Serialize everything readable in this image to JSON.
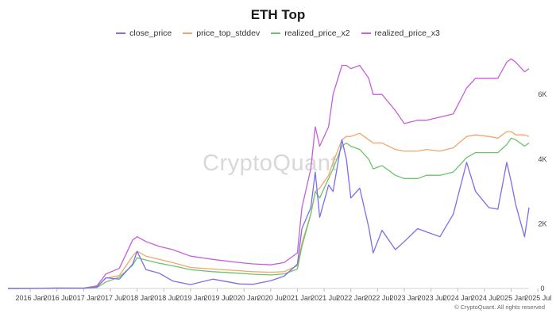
{
  "chart_data": {
    "type": "line",
    "title": "ETH Top",
    "xlabel": "",
    "ylabel": "",
    "ylim": [
      0,
      7500
    ],
    "y_ticks": [
      0,
      2000,
      4000,
      6000
    ],
    "y_tick_labels": [
      "0",
      "2K",
      "4K",
      "6K"
    ],
    "x_tick_labels": [
      "2016 Jan",
      "2016 Jul",
      "2017 Jan",
      "2017 Jul",
      "2018 Jan",
      "2018 Jul",
      "2019 Jan",
      "2019 Jul",
      "2020 Jan",
      "2020 Jul",
      "2021 Jan",
      "2021 Jul",
      "2022 Jan",
      "2022 Jul",
      "2023 Jan",
      "2023 Jul",
      "2024 Jan",
      "2024 Jul",
      "2025 Jan",
      "2025 Jul"
    ],
    "x_range": [
      "2015-08",
      "2025-05"
    ],
    "grid": false,
    "legend_position": "top-center",
    "x": [
      "2015-08",
      "2016-01",
      "2016-07",
      "2017-01",
      "2017-04",
      "2017-06",
      "2017-09",
      "2017-12",
      "2018-01",
      "2018-03",
      "2018-06",
      "2018-09",
      "2019-01",
      "2019-06",
      "2019-12",
      "2020-03",
      "2020-07",
      "2020-10",
      "2021-01",
      "2021-02",
      "2021-04",
      "2021-05",
      "2021-06",
      "2021-08",
      "2021-09",
      "2021-11",
      "2021-12",
      "2022-01",
      "2022-03",
      "2022-05",
      "2022-06",
      "2022-08",
      "2022-11",
      "2023-01",
      "2023-04",
      "2023-06",
      "2023-09",
      "2023-12",
      "2024-03",
      "2024-05",
      "2024-08",
      "2024-10",
      "2024-12",
      "2025-01",
      "2025-02",
      "2025-04",
      "2025-05"
    ],
    "series": [
      {
        "name": "close_price",
        "color": "#7b6ee8",
        "values": [
          1,
          1,
          11,
          9,
          50,
          330,
          290,
          750,
          1150,
          580,
          470,
          230,
          120,
          290,
          140,
          130,
          240,
          380,
          750,
          1850,
          2500,
          3600,
          2200,
          3200,
          3000,
          4600,
          4000,
          2800,
          3100,
          1900,
          1100,
          1800,
          1200,
          1450,
          1850,
          1750,
          1600,
          2300,
          3900,
          3000,
          2500,
          2450,
          3900,
          3300,
          2600,
          1600,
          2500
        ]
      },
      {
        "name": "price_top_stddev",
        "color": "#f1a56b",
        "values": [
          1,
          2,
          12,
          10,
          55,
          320,
          400,
          1000,
          1150,
          1000,
          900,
          800,
          650,
          600,
          550,
          520,
          500,
          520,
          700,
          1400,
          2300,
          3000,
          3100,
          3500,
          3900,
          4600,
          4700,
          4700,
          4800,
          4600,
          4500,
          4500,
          4300,
          4250,
          4250,
          4300,
          4250,
          4350,
          4700,
          4750,
          4700,
          4650,
          4850,
          4850,
          4750,
          4750,
          4700
        ]
      },
      {
        "name": "realized_price_x2",
        "color": "#6bc46a",
        "values": [
          1,
          2,
          8,
          6,
          30,
          200,
          350,
          720,
          950,
          880,
          780,
          700,
          580,
          520,
          470,
          440,
          420,
          450,
          600,
          1300,
          2300,
          3000,
          2800,
          3400,
          3700,
          4400,
          4500,
          4400,
          4300,
          4000,
          3700,
          3800,
          3500,
          3400,
          3400,
          3500,
          3500,
          3600,
          4050,
          4200,
          4200,
          4200,
          4450,
          4650,
          4600,
          4400,
          4500
        ]
      },
      {
        "name": "realized_price_x3",
        "color": "#c65fda",
        "values": [
          1,
          3,
          15,
          12,
          80,
          450,
          620,
          1500,
          1600,
          1450,
          1300,
          1200,
          1000,
          900,
          800,
          760,
          730,
          800,
          1100,
          2500,
          3700,
          5000,
          4400,
          5000,
          6000,
          6900,
          6900,
          6800,
          6900,
          6500,
          6000,
          6000,
          5500,
          5100,
          5200,
          5200,
          5300,
          5400,
          6200,
          6500,
          6500,
          6500,
          7000,
          7100,
          7000,
          6700,
          6800
        ]
      }
    ]
  },
  "watermark": "CryptoQuant",
  "footer": "© CryptoQuant. All rights reserved"
}
